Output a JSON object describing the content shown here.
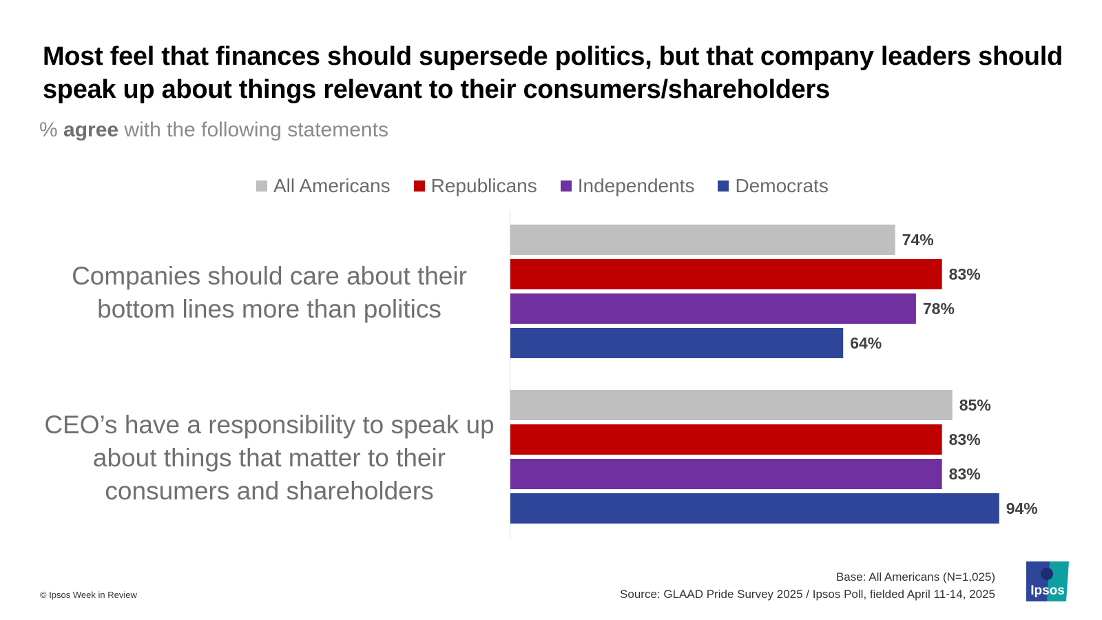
{
  "title": "Most feel that finances should supersede politics, but that company leaders should speak up about things relevant to their consumers/shareholders",
  "subtitle": {
    "prefix": "% ",
    "bold": "agree",
    "suffix": " with the following statements"
  },
  "colors": {
    "All Americans": "#bfbfbf",
    "Republicans": "#c00000",
    "Independents": "#7030a0",
    "Democrats": "#2f4599"
  },
  "chart_data": {
    "type": "bar",
    "orientation": "horizontal",
    "categories": [
      "Companies should care about their bottom lines more than politics",
      "CEO’s have a responsibility to speak up about things that matter to their consumers and shareholders"
    ],
    "series": [
      {
        "name": "All Americans",
        "values": [
          74,
          85
        ]
      },
      {
        "name": "Republicans",
        "values": [
          83,
          83
        ]
      },
      {
        "name": "Independents",
        "values": [
          78,
          83
        ]
      },
      {
        "name": "Democrats",
        "values": [
          64,
          94
        ]
      }
    ],
    "unit": "%",
    "xlim": [
      0,
      100
    ],
    "legend": "top",
    "grid": false
  },
  "footer": {
    "copyright": "© Ipsos Week in Review",
    "base": "Base: All Americans (N=1,025)",
    "source": "Source: GLAAD Pride Survey 2025 / Ipsos Poll, fielded April 11-14, 2025",
    "logo_text": "Ipsos"
  }
}
